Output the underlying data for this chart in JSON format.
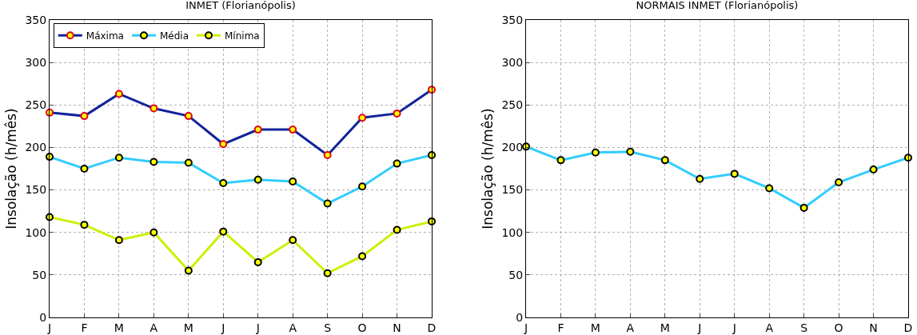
{
  "chart_data": [
    {
      "type": "line",
      "title": "INMET (Florianópolis)",
      "ylabel": "Insolação (h/mês)",
      "categories": [
        "J",
        "F",
        "M",
        "A",
        "M",
        "J",
        "J",
        "A",
        "S",
        "O",
        "N",
        "D"
      ],
      "series": [
        {
          "name": "Máxima",
          "color": "#12239a",
          "values": [
            241,
            237,
            263,
            246,
            237,
            204,
            221,
            221,
            191,
            235,
            240,
            268
          ]
        },
        {
          "name": "Média",
          "color": "#33ccff",
          "values": [
            189,
            175,
            188,
            183,
            182,
            158,
            162,
            160,
            134,
            154,
            181,
            191
          ]
        },
        {
          "name": "Mínima",
          "color": "#ccf000",
          "values": [
            118,
            109,
            91,
            100,
            55,
            101,
            65,
            91,
            52,
            72,
            103,
            113
          ]
        }
      ],
      "ylim": [
        0,
        350
      ],
      "yticks": [
        0,
        50,
        100,
        150,
        200,
        250,
        300,
        350
      ],
      "grid": true,
      "legend": "top left",
      "marker": "circle",
      "line_style": "solid"
    },
    {
      "type": "line",
      "title": "NORMAIS INMET (Florianópolis)",
      "ylabel": "Insolação (h/mês)",
      "categories": [
        "J",
        "F",
        "M",
        "A",
        "M",
        "J",
        "J",
        "A",
        "S",
        "O",
        "N",
        "D"
      ],
      "series": [
        {
          "color": "#33ccff",
          "values": [
            201,
            185,
            194,
            195,
            185,
            163,
            169,
            152,
            129,
            159,
            174,
            188
          ]
        }
      ],
      "ylim": [
        0,
        350
      ],
      "yticks": [
        0,
        50,
        100,
        150,
        200,
        250,
        300,
        350
      ],
      "grid": true,
      "marker": "circle",
      "line_style": "solid"
    }
  ]
}
